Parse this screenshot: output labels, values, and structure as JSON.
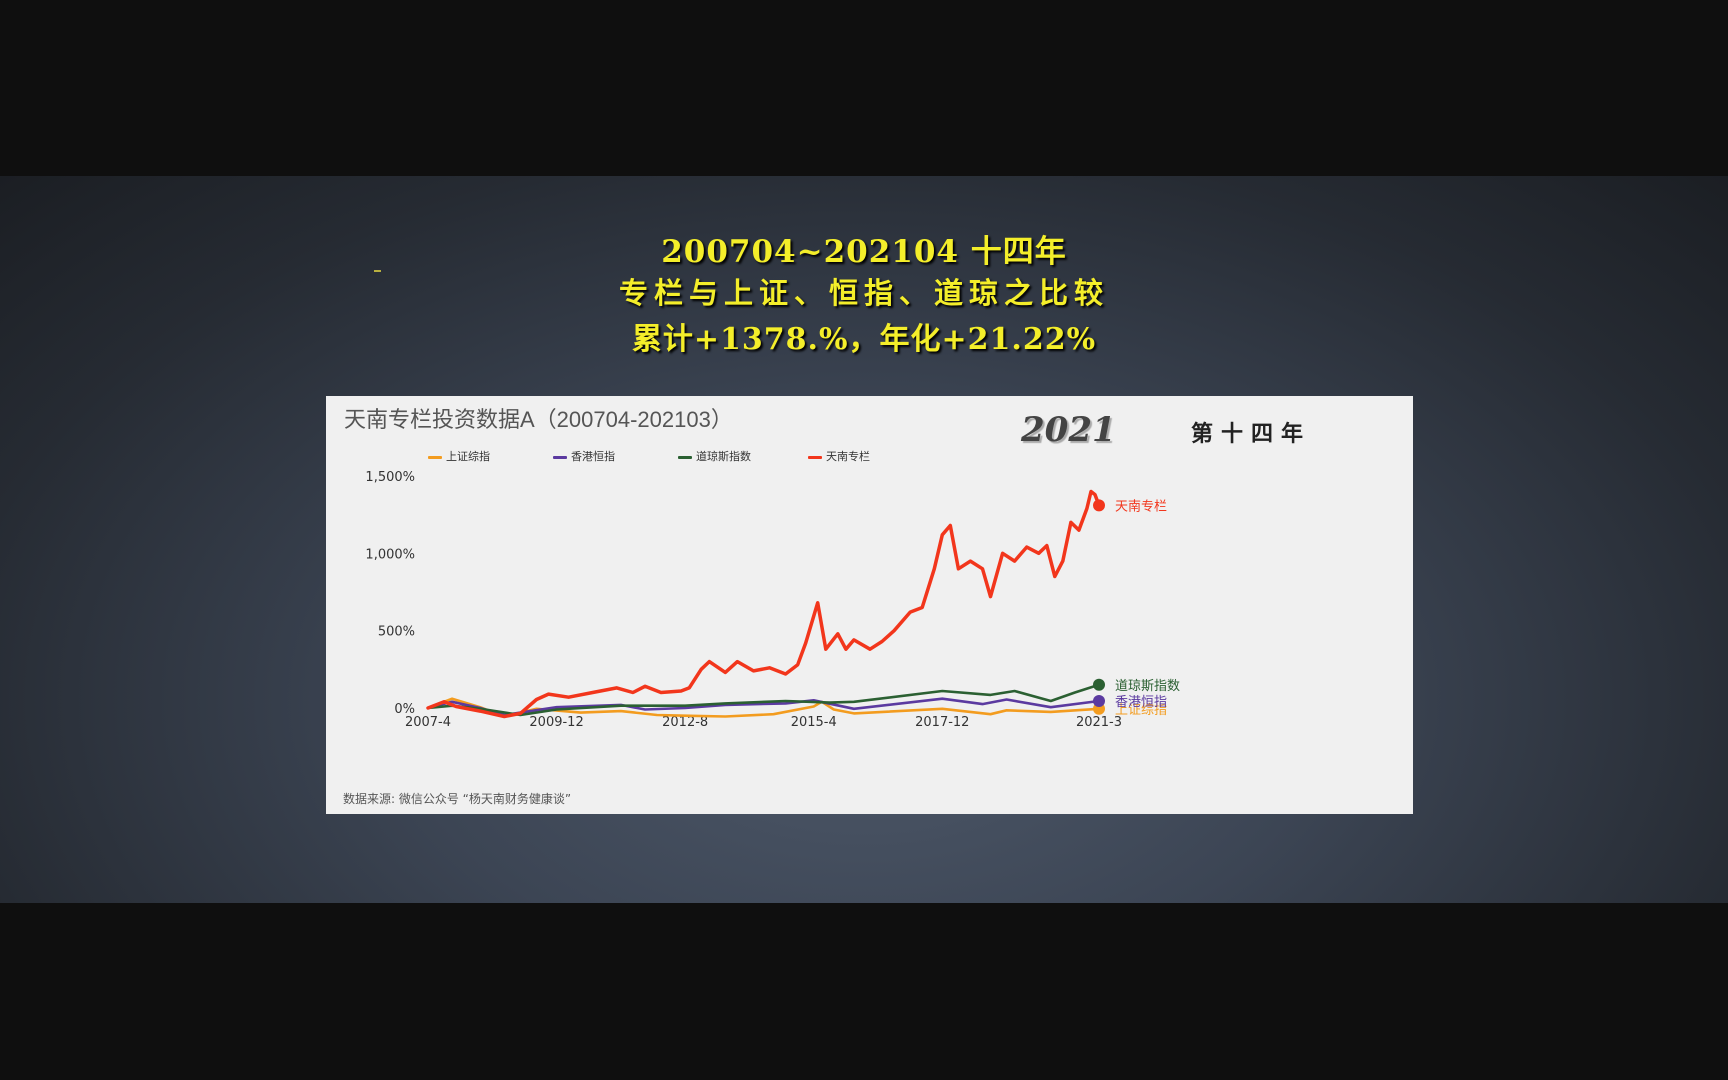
{
  "slide": {
    "headline_line1": "200704~202104 十四年",
    "headline_line2": "专栏与上证、恒指、道琼之比较",
    "headline_line3": "累计+1378.%，年化+21.22%"
  },
  "panel": {
    "title": "天南专栏投资数据A（200704-202103）",
    "year_mark": "2021",
    "year_label": "第十四年",
    "source": "数据来源: 微信公众号 “杨天南财务健康谈”"
  },
  "chart_data": {
    "type": "line",
    "title": "天南专栏投资数据A（200704-202103）",
    "xlabel": "",
    "ylabel": "",
    "x_ticks": [
      "2007-4",
      "2009-12",
      "2012-8",
      "2015-4",
      "2017-12",
      "2021-3"
    ],
    "y_ticks": [
      "0%",
      "500%",
      "1,000%",
      "1,500%"
    ],
    "ylim": [
      0,
      1500
    ],
    "xlim": [
      "2007-4",
      "2021-3"
    ],
    "legend_position": "top-left",
    "grid": false,
    "series": [
      {
        "name": "上证综指",
        "color": "#f39c1f",
        "end_label": "上证综指",
        "points": [
          [
            "2007-4",
            0
          ],
          [
            "2007-10",
            60
          ],
          [
            "2008-5",
            5
          ],
          [
            "2008-11",
            -55
          ],
          [
            "2009-7",
            -5
          ],
          [
            "2010-6",
            -30
          ],
          [
            "2011-4",
            -20
          ],
          [
            "2012-1",
            -45
          ],
          [
            "2012-8",
            -50
          ],
          [
            "2013-6",
            -55
          ],
          [
            "2014-6",
            -40
          ],
          [
            "2015-4",
            10
          ],
          [
            "2015-6",
            40
          ],
          [
            "2015-9",
            -10
          ],
          [
            "2016-2",
            -35
          ],
          [
            "2017-12",
            -5
          ],
          [
            "2018-12",
            -40
          ],
          [
            "2019-4",
            -15
          ],
          [
            "2020-3",
            -25
          ],
          [
            "2021-3",
            -5
          ]
        ]
      },
      {
        "name": "香港恒指",
        "color": "#5b3aa0",
        "end_label": "香港恒指",
        "points": [
          [
            "2007-4",
            0
          ],
          [
            "2007-10",
            40
          ],
          [
            "2008-5",
            0
          ],
          [
            "2008-11",
            -45
          ],
          [
            "2009-12",
            5
          ],
          [
            "2011-4",
            20
          ],
          [
            "2011-10",
            -10
          ],
          [
            "2012-8",
            0
          ],
          [
            "2013-6",
            20
          ],
          [
            "2014-9",
            30
          ],
          [
            "2015-4",
            50
          ],
          [
            "2016-2",
            -5
          ],
          [
            "2017-12",
            60
          ],
          [
            "2018-10",
            25
          ],
          [
            "2019-4",
            55
          ],
          [
            "2020-3",
            5
          ],
          [
            "2021-3",
            45
          ]
        ]
      },
      {
        "name": "道琼斯指数",
        "color": "#2b6032",
        "end_label": "道琼斯指数",
        "points": [
          [
            "2007-4",
            0
          ],
          [
            "2007-10",
            15
          ],
          [
            "2008-5",
            -5
          ],
          [
            "2009-3",
            -45
          ],
          [
            "2009-12",
            -10
          ],
          [
            "2011-4",
            15
          ],
          [
            "2012-8",
            15
          ],
          [
            "2013-6",
            30
          ],
          [
            "2014-9",
            45
          ],
          [
            "2015-8",
            35
          ],
          [
            "2016-2",
            40
          ],
          [
            "2017-12",
            110
          ],
          [
            "2018-12",
            85
          ],
          [
            "2019-6",
            110
          ],
          [
            "2020-3",
            45
          ],
          [
            "2020-9",
            100
          ],
          [
            "2021-3",
            150
          ]
        ]
      },
      {
        "name": "天南专栏",
        "color": "#f2361c",
        "end_label": "天南专栏",
        "points": [
          [
            "2007-4",
            0
          ],
          [
            "2007-8",
            40
          ],
          [
            "2007-11",
            10
          ],
          [
            "2008-5",
            -20
          ],
          [
            "2008-11",
            -55
          ],
          [
            "2009-3",
            -35
          ],
          [
            "2009-7",
            55
          ],
          [
            "2009-10",
            90
          ],
          [
            "2010-3",
            70
          ],
          [
            "2010-9",
            100
          ],
          [
            "2011-3",
            130
          ],
          [
            "2011-7",
            100
          ],
          [
            "2011-10",
            140
          ],
          [
            "2012-2",
            100
          ],
          [
            "2012-7",
            110
          ],
          [
            "2012-9",
            130
          ],
          [
            "2012-12",
            250
          ],
          [
            "2013-2",
            300
          ],
          [
            "2013-6",
            230
          ],
          [
            "2013-9",
            300
          ],
          [
            "2014-1",
            240
          ],
          [
            "2014-5",
            260
          ],
          [
            "2014-9",
            220
          ],
          [
            "2014-12",
            280
          ],
          [
            "2015-2",
            420
          ],
          [
            "2015-5",
            680
          ],
          [
            "2015-7",
            380
          ],
          [
            "2015-10",
            480
          ],
          [
            "2015-12",
            380
          ],
          [
            "2016-2",
            440
          ],
          [
            "2016-6",
            380
          ],
          [
            "2016-9",
            430
          ],
          [
            "2016-12",
            500
          ],
          [
            "2017-4",
            620
          ],
          [
            "2017-7",
            650
          ],
          [
            "2017-10",
            900
          ],
          [
            "2017-12",
            1120
          ],
          [
            "2018-2",
            1180
          ],
          [
            "2018-4",
            900
          ],
          [
            "2018-7",
            950
          ],
          [
            "2018-10",
            900
          ],
          [
            "2018-12",
            720
          ],
          [
            "2019-3",
            1000
          ],
          [
            "2019-6",
            950
          ],
          [
            "2019-9",
            1040
          ],
          [
            "2019-12",
            1000
          ],
          [
            "2020-2",
            1050
          ],
          [
            "2020-4",
            850
          ],
          [
            "2020-6",
            950
          ],
          [
            "2020-8",
            1200
          ],
          [
            "2020-10",
            1150
          ],
          [
            "2020-12",
            1290
          ],
          [
            "2021-1",
            1400
          ],
          [
            "2021-2",
            1380
          ],
          [
            "2021-3",
            1310
          ]
        ]
      }
    ]
  }
}
